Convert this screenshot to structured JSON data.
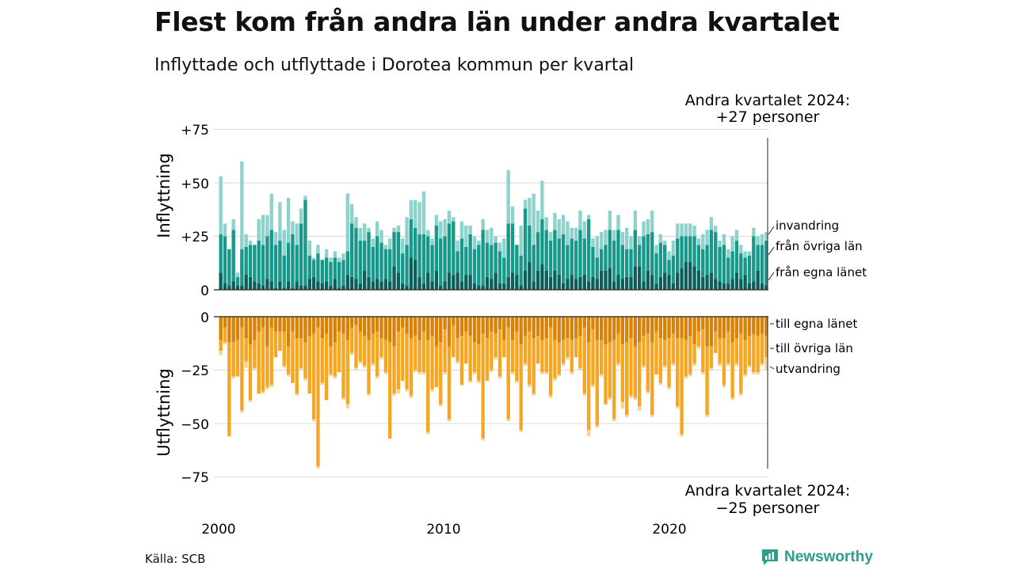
{
  "title": "Flest kom från andra län under andra kvartalet",
  "subtitle": "Inflyttade och utflyttade i Dorotea kommun per kvartal",
  "source": "Källa: SCB",
  "brand": "Newsworthy",
  "chart_data": {
    "type": "bar",
    "stacked": true,
    "diverging": true,
    "x_tick_labels": [
      "2000",
      "2010",
      "2020"
    ],
    "y_tick_labels_top": [
      "+75",
      "+50",
      "+25",
      "0"
    ],
    "y_tick_labels_bottom": [
      "0",
      "−25",
      "−50",
      "−75"
    ],
    "ylabel_top": "Inflyttning",
    "ylabel_bottom": "Utflyttning",
    "ylim": [
      -75,
      75
    ],
    "grid": true,
    "annotation_top": [
      "Andra kvartalet 2024:",
      "+27 personer"
    ],
    "annotation_bottom": [
      "Andra kvartalet 2024:",
      "−25 personer"
    ],
    "colors": {
      "egna_in": "#0b5f58",
      "ovriga_in": "#16988a",
      "invandring": "#8dd3cc",
      "egna_ut": "#d9820a",
      "ovriga_ut": "#f5a623",
      "utvandring": "#f7d59a",
      "grid": "#d9d9d9",
      "axis": "#222222"
    },
    "series_in": [
      {
        "name": "från egna länet",
        "color_key": "egna_in",
        "values": [
          8,
          3,
          2,
          4,
          2,
          2,
          7,
          6,
          4,
          3,
          2,
          5,
          4,
          1,
          4,
          1,
          4,
          1,
          4,
          2,
          2,
          5,
          6,
          4,
          3,
          4,
          2,
          5,
          1,
          2,
          7,
          6,
          5,
          3,
          9,
          6,
          4,
          5,
          4,
          5,
          4,
          11,
          8,
          3,
          2,
          15,
          14,
          6,
          3,
          8,
          4,
          9,
          2,
          4,
          8,
          7,
          8,
          4,
          7,
          7,
          3,
          2,
          2,
          6,
          5,
          8,
          3,
          3,
          6,
          8,
          7,
          2,
          9,
          13,
          4,
          9,
          12,
          9,
          6,
          9,
          7,
          3,
          5,
          7,
          5,
          6,
          7,
          4,
          6,
          5,
          9,
          9,
          10,
          4,
          7,
          5,
          6,
          6,
          11,
          11,
          4,
          9,
          7,
          3,
          6,
          8,
          7,
          3,
          8,
          10,
          13,
          13,
          11,
          9,
          6,
          7,
          8,
          5,
          4,
          3,
          3,
          5,
          8,
          5,
          7,
          3,
          4,
          9,
          3,
          2
        ]
      },
      {
        "name": "från övriga län",
        "color_key": "ovriga_in",
        "values": [
          18,
          22,
          17,
          24,
          4,
          17,
          13,
          15,
          17,
          20,
          19,
          20,
          24,
          20,
          19,
          15,
          18,
          25,
          17,
          29,
          40,
          11,
          8,
          13,
          11,
          11,
          11,
          10,
          12,
          12,
          11,
          25,
          24,
          20,
          14,
          21,
          16,
          20,
          18,
          14,
          15,
          16,
          19,
          14,
          19,
          18,
          15,
          20,
          23,
          17,
          17,
          21,
          22,
          21,
          23,
          25,
          10,
          20,
          13,
          19,
          16,
          19,
          26,
          16,
          16,
          14,
          15,
          12,
          25,
          23,
          14,
          14,
          29,
          17,
          17,
          18,
          21,
          19,
          17,
          19,
          17,
          23,
          16,
          17,
          18,
          22,
          17,
          29,
          14,
          10,
          10,
          12,
          18,
          19,
          21,
          16,
          13,
          13,
          17,
          10,
          21,
          17,
          20,
          14,
          16,
          13,
          7,
          13,
          16,
          15,
          12,
          12,
          14,
          12,
          13,
          14,
          20,
          22,
          16,
          18,
          12,
          13,
          15,
          12,
          8,
          13,
          21,
          12,
          18,
          21
        ]
      },
      {
        "name": "invandring",
        "color_key": "invandring",
        "values": [
          27,
          6,
          0,
          5,
          2,
          41,
          6,
          2,
          0,
          10,
          14,
          10,
          17,
          6,
          18,
          12,
          21,
          6,
          10,
          7,
          2,
          7,
          1,
          4,
          0,
          4,
          2,
          3,
          2,
          3,
          27,
          9,
          5,
          6,
          8,
          2,
          4,
          7,
          6,
          2,
          5,
          2,
          3,
          7,
          13,
          9,
          13,
          15,
          20,
          3,
          3,
          5,
          8,
          8,
          6,
          2,
          5,
          8,
          10,
          4,
          6,
          2,
          5,
          6,
          8,
          3,
          4,
          9,
          25,
          8,
          0,
          14,
          4,
          13,
          24,
          10,
          18,
          6,
          4,
          8,
          9,
          9,
          11,
          5,
          6,
          9,
          8,
          2,
          4,
          10,
          8,
          7,
          9,
          5,
          7,
          6,
          10,
          6,
          9,
          4,
          7,
          7,
          10,
          4,
          4,
          2,
          4,
          7,
          7,
          6,
          6,
          6,
          5,
          3,
          7,
          7,
          6,
          3,
          3,
          5,
          4,
          7,
          5,
          4,
          3,
          2,
          4,
          4,
          5,
          4
        ]
      }
    ],
    "series_out": [
      {
        "name": "till egna länet",
        "color_key": "egna_ut",
        "values": [
          11,
          5,
          12,
          12,
          11,
          5,
          10,
          13,
          11,
          7,
          5,
          14,
          5,
          7,
          7,
          7,
          14,
          7,
          10,
          10,
          12,
          9,
          8,
          5,
          10,
          8,
          14,
          12,
          7,
          8,
          11,
          5,
          4,
          7,
          9,
          11,
          8,
          7,
          10,
          11,
          12,
          14,
          7,
          5,
          8,
          10,
          9,
          11,
          7,
          11,
          9,
          14,
          12,
          6,
          14,
          4,
          10,
          9,
          7,
          9,
          12,
          13,
          8,
          10,
          7,
          8,
          6,
          11,
          5,
          11,
          7,
          13,
          9,
          7,
          10,
          9,
          11,
          10,
          5,
          11,
          12,
          11,
          10,
          11,
          10,
          9,
          5,
          12,
          6,
          11,
          11,
          13,
          12,
          11,
          8,
          13,
          12,
          10,
          14,
          12,
          9,
          8,
          12,
          7,
          10,
          11,
          10,
          8,
          10,
          10,
          11,
          9,
          13,
          7,
          6,
          14,
          14,
          7,
          10,
          10,
          7,
          12,
          10,
          8,
          11,
          9,
          8,
          9,
          8,
          9
        ]
      },
      {
        "name": "till övriga län",
        "color_key": "ovriga_ut",
        "values": [
          5,
          7,
          44,
          16,
          17,
          39,
          11,
          26,
          13,
          29,
          30,
          19,
          27,
          12,
          9,
          16,
          13,
          24,
          26,
          14,
          17,
          27,
          40,
          65,
          21,
          31,
          13,
          16,
          19,
          30,
          30,
          12,
          20,
          14,
          14,
          25,
          14,
          21,
          9,
          15,
          45,
          22,
          27,
          25,
          26,
          27,
          16,
          15,
          19,
          43,
          25,
          19,
          29,
          20,
          34,
          15,
          11,
          23,
          15,
          21,
          14,
          17,
          49,
          20,
          18,
          11,
          22,
          8,
          43,
          15,
          23,
          40,
          13,
          25,
          26,
          13,
          15,
          16,
          32,
          18,
          15,
          11,
          9,
          15,
          9,
          15,
          31,
          41,
          26,
          40,
          16,
          28,
          26,
          37,
          14,
          27,
          34,
          27,
          24,
          30,
          14,
          27,
          34,
          20,
          21,
          12,
          23,
          14,
          32,
          45,
          17,
          18,
          9,
          7,
          20,
          32,
          10,
          10,
          12,
          22,
          15,
          26,
          12,
          28,
          16,
          14,
          18,
          17,
          14,
          10
        ]
      },
      {
        "name": "utvandring",
        "color_key": "utvandring",
        "values": [
          2,
          1,
          0,
          1,
          0,
          1,
          3,
          1,
          1,
          0,
          1,
          1,
          1,
          0,
          0,
          1,
          1,
          0,
          1,
          1,
          1,
          0,
          1,
          1,
          1,
          0,
          1,
          1,
          0,
          1,
          2,
          1,
          1,
          1,
          1,
          1,
          1,
          1,
          1,
          1,
          0,
          1,
          2,
          0,
          1,
          1,
          1,
          1,
          1,
          1,
          1,
          0,
          1,
          1,
          1,
          0,
          1,
          0,
          0,
          1,
          1,
          1,
          1,
          0,
          1,
          1,
          1,
          0,
          1,
          1,
          1,
          1,
          1,
          1,
          1,
          0,
          1,
          1,
          1,
          1,
          1,
          1,
          1,
          1,
          0,
          1,
          1,
          3,
          1,
          1,
          1,
          0,
          1,
          1,
          1,
          3,
          1,
          1,
          1,
          2,
          1,
          1,
          1,
          0,
          1,
          1,
          1,
          1,
          1,
          1,
          1,
          1,
          1,
          1,
          1,
          1,
          1,
          0,
          1,
          1,
          1,
          1,
          1,
          1,
          1,
          1,
          1,
          1,
          1,
          6
        ]
      }
    ],
    "legend_in": [
      "invandring",
      "från övriga län",
      "från egna länet"
    ],
    "legend_out": [
      "till egna länet",
      "till övriga län",
      "utvandring"
    ]
  }
}
